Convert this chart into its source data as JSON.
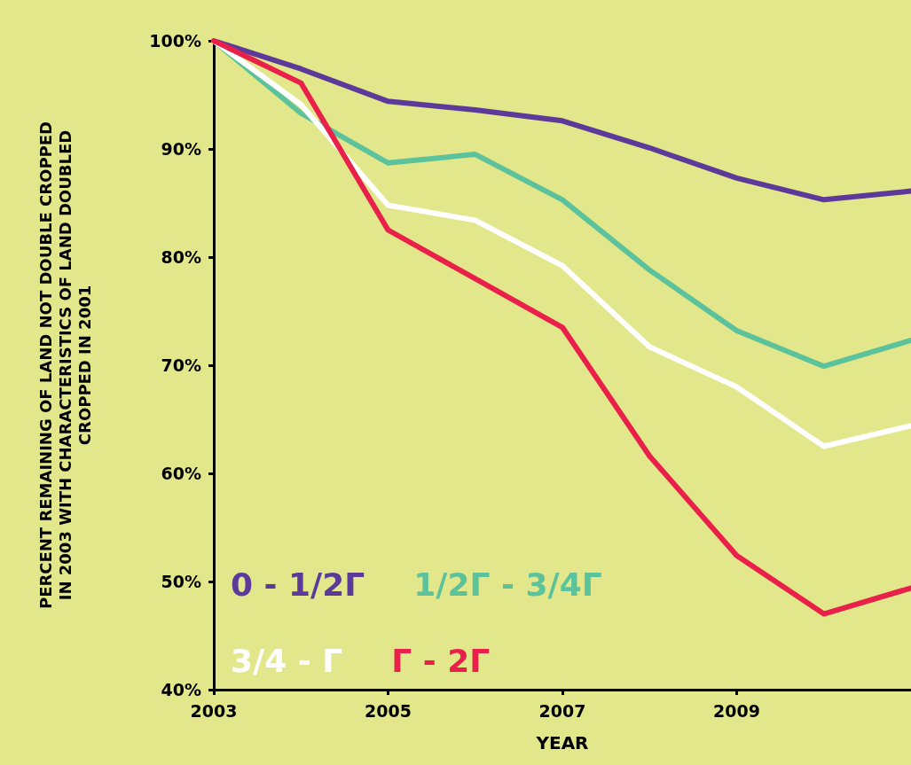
{
  "chart_data": {
    "type": "line",
    "xlabel": "YEAR",
    "ylabel": "PERCENT REMAINING OF LAND NOT DOUBLE CROPPED IN 2003 WITH CHARACTERISTICS OF LAND DOUBLED CROPPED IN 2001",
    "x": [
      2003,
      2004,
      2005,
      2006,
      2007,
      2008,
      2009,
      2010,
      2011
    ],
    "series": [
      {
        "name": "0 - 1/2Γ",
        "color": "#5b3a9a",
        "values": [
          100,
          97.4,
          94.4,
          93.6,
          92.6,
          90.1,
          87.3,
          85.3,
          86.1
        ]
      },
      {
        "name": "1/2Γ - 3/4Γ",
        "color": "#5cc29b",
        "values": [
          100,
          93.3,
          88.7,
          89.5,
          85.3,
          78.8,
          73.2,
          69.9,
          72.3
        ]
      },
      {
        "name": "3/4 - Γ",
        "color": "#ffffff",
        "values": [
          100,
          94.1,
          84.8,
          83.4,
          79.2,
          71.7,
          68.0,
          62.5,
          64.4
        ]
      },
      {
        "name": "Γ - 2Γ",
        "color": "#e8204a",
        "values": [
          100,
          96.1,
          82.5,
          78.0,
          73.5,
          61.6,
          52.4,
          47.0,
          49.4
        ]
      }
    ],
    "xlim": [
      2003,
      2011
    ],
    "xticks": [
      2003,
      2005,
      2007,
      2009
    ],
    "ylim": [
      40,
      100
    ],
    "yticks": [
      {
        "value": 40,
        "label": "40%"
      },
      {
        "value": 50,
        "label": "50%"
      },
      {
        "value": 60,
        "label": "60%"
      },
      {
        "value": 70,
        "label": "70%"
      },
      {
        "value": 80,
        "label": "80%"
      },
      {
        "value": 90,
        "label": "90%"
      },
      {
        "value": 100,
        "label": "100%"
      }
    ],
    "grid": false,
    "legend": "bottom left",
    "marker": "none",
    "line_style": "solid"
  }
}
